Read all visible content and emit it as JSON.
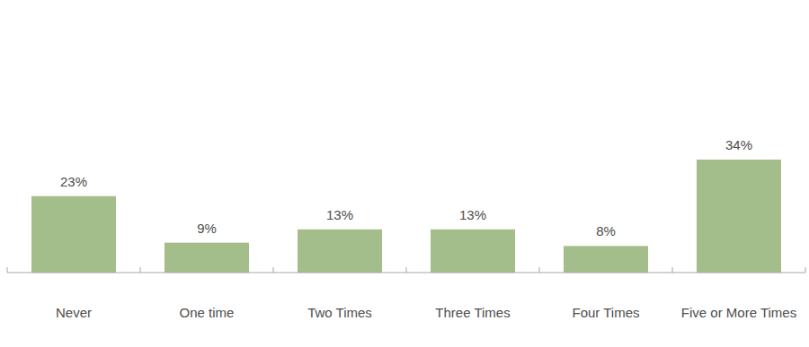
{
  "chart_data": {
    "type": "bar",
    "categories": [
      "Never",
      "One time",
      "Two Times",
      "Three Times",
      "Four Times",
      "Five or More Times"
    ],
    "values": [
      23,
      9,
      13,
      13,
      8,
      34
    ],
    "value_labels": [
      "23%",
      "9%",
      "13%",
      "13%",
      "8%",
      "34%"
    ],
    "color": "#a3bd8b",
    "data_labels": true,
    "tick_labels": "x",
    "grid": false
  }
}
